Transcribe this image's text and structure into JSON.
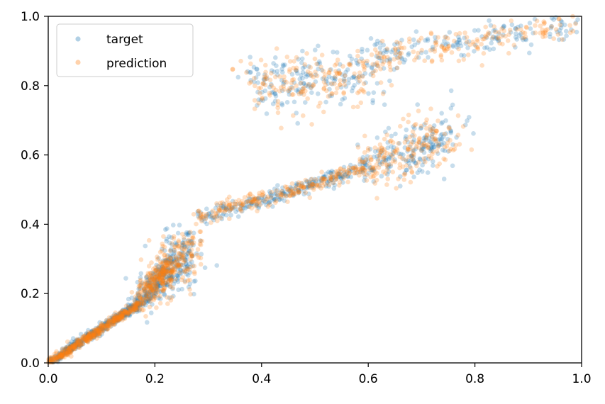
{
  "chart_data": {
    "type": "scatter",
    "title": "",
    "xlabel": "",
    "ylabel": "",
    "xlim": [
      0.0,
      1.0
    ],
    "ylim": [
      0.0,
      1.0
    ],
    "grid": false,
    "legend_position": "top-left",
    "x_ticks": [
      "0.0",
      "0.2",
      "0.4",
      "0.6",
      "0.8",
      "1.0"
    ],
    "y_ticks": [
      "0.0",
      "0.2",
      "0.4",
      "0.6",
      "0.8",
      "1.0"
    ],
    "series": [
      {
        "name": "target",
        "color": "#1f77b4",
        "opacity": 0.25,
        "n_points": 1500
      },
      {
        "name": "prediction",
        "color": "#ff7f0e",
        "opacity": 0.25,
        "n_points": 1500
      }
    ],
    "clusters": [
      {
        "x": [
          0.0,
          0.17
        ],
        "y": [
          0.0,
          0.17
        ],
        "share": 0.26,
        "spread": 0.006
      },
      {
        "x": [
          0.17,
          0.22
        ],
        "y": [
          0.17,
          0.27
        ],
        "share": 0.12,
        "spread": 0.018
      },
      {
        "x": [
          0.22,
          0.26
        ],
        "y": [
          0.24,
          0.34
        ],
        "share": 0.12,
        "spread": 0.035
      },
      {
        "x": [
          0.28,
          0.45
        ],
        "y": [
          0.42,
          0.49
        ],
        "share": 0.08,
        "spread": 0.012
      },
      {
        "x": [
          0.45,
          0.6
        ],
        "y": [
          0.49,
          0.57
        ],
        "share": 0.08,
        "spread": 0.012
      },
      {
        "x": [
          0.6,
          0.76
        ],
        "y": [
          0.57,
          0.66
        ],
        "share": 0.12,
        "spread": 0.035
      },
      {
        "x": [
          0.38,
          0.62
        ],
        "y": [
          0.8,
          0.84
        ],
        "share": 0.12,
        "spread": 0.04
      },
      {
        "x": [
          0.6,
          1.0
        ],
        "y": [
          0.88,
          0.98
        ],
        "share": 0.1,
        "spread": 0.02
      }
    ]
  }
}
